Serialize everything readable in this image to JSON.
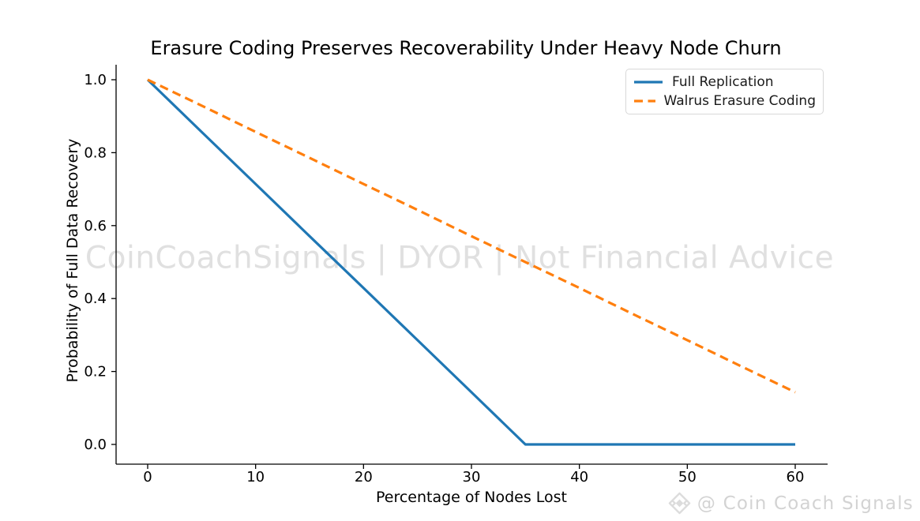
{
  "figure": {
    "background": "#ffffff"
  },
  "watermarks": {
    "center": "CoinCoachSignals | DYOR | Not Financial Advice",
    "corner": "@ Coin Coach Signals"
  },
  "chart_data": {
    "type": "line",
    "title": "Erasure Coding Preserves Recoverability Under Heavy Node Churn",
    "xlabel": "Percentage of Nodes Lost",
    "ylabel": "Probability of Full Data Recovery",
    "x": [
      0,
      5,
      10,
      15,
      20,
      25,
      30,
      35,
      40,
      45,
      50,
      55,
      60
    ],
    "series": [
      {
        "name": "Full Replication",
        "color": "#1f77b4",
        "style": "solid",
        "values": [
          1.0,
          0.857,
          0.714,
          0.571,
          0.429,
          0.286,
          0.143,
          0.0,
          0.0,
          0.0,
          0.0,
          0.0,
          0.0
        ]
      },
      {
        "name": "Walrus Erasure Coding",
        "color": "#ff7f0e",
        "style": "dashed",
        "values": [
          1.0,
          0.929,
          0.857,
          0.786,
          0.714,
          0.643,
          0.571,
          0.5,
          0.429,
          0.357,
          0.286,
          0.214,
          0.143
        ]
      }
    ],
    "xticks": [
      0,
      10,
      20,
      30,
      40,
      50,
      60
    ],
    "xtick_labels": [
      "0",
      "10",
      "20",
      "30",
      "40",
      "50",
      "60"
    ],
    "yticks": [
      0.0,
      0.2,
      0.4,
      0.6,
      0.8,
      1.0
    ],
    "ytick_labels": [
      "0.0",
      "0.2",
      "0.4",
      "0.6",
      "0.8",
      "1.0"
    ],
    "xlim": [
      -3,
      63
    ],
    "ylim": [
      -0.054,
      1.048
    ],
    "grid": false,
    "legend_position": "upper right",
    "axis_color": "#000000"
  }
}
